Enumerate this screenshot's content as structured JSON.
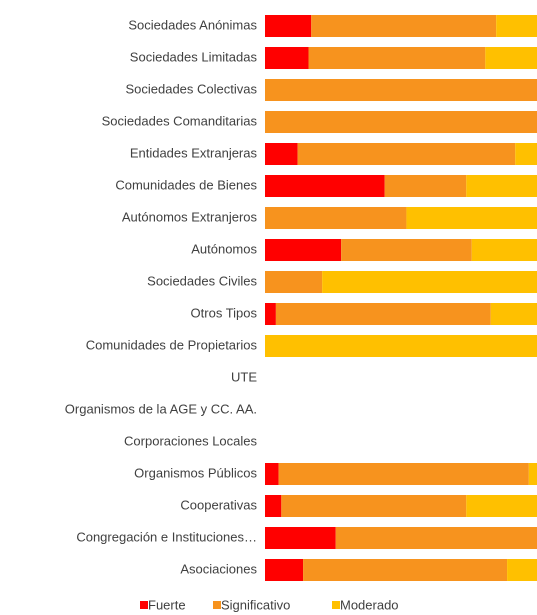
{
  "chart_data": {
    "type": "stacked_barh",
    "categories": [
      "Sociedades Anónimas",
      "Sociedades Limitadas",
      "Sociedades Colectivas",
      "Sociedades Comanditarias",
      "Entidades Extranjeras",
      "Comunidades de Bienes",
      "Autónomos Extranjeros",
      "Autónomos",
      "Sociedades Civiles",
      "Otros Tipos",
      "Comunidades de Propietarios",
      "UTE",
      "Organismos de la AGE y CC. AA.",
      "Corporaciones Locales",
      "Organismos Públicos",
      "Cooperativas",
      "Congregación e Instituciones…",
      "Asociaciones"
    ],
    "series": [
      {
        "name": "Fuerte",
        "color": "#ff0000",
        "values": [
          17,
          16,
          0,
          0,
          12,
          44,
          0,
          28,
          0,
          4,
          0,
          null,
          null,
          null,
          5,
          6,
          26,
          14
        ]
      },
      {
        "name": "Significativo",
        "color": "#f7931e",
        "values": [
          68,
          65,
          100,
          100,
          80,
          30,
          52,
          48,
          21,
          79,
          0,
          null,
          null,
          null,
          92,
          68,
          74,
          75
        ]
      },
      {
        "name": "Moderado",
        "color": "#ffc000",
        "values": [
          15,
          19,
          0,
          0,
          8,
          26,
          48,
          24,
          79,
          17,
          100,
          null,
          null,
          null,
          3,
          26,
          0,
          11
        ]
      }
    ],
    "xlim": [
      0,
      100
    ],
    "legend": "bottom"
  }
}
